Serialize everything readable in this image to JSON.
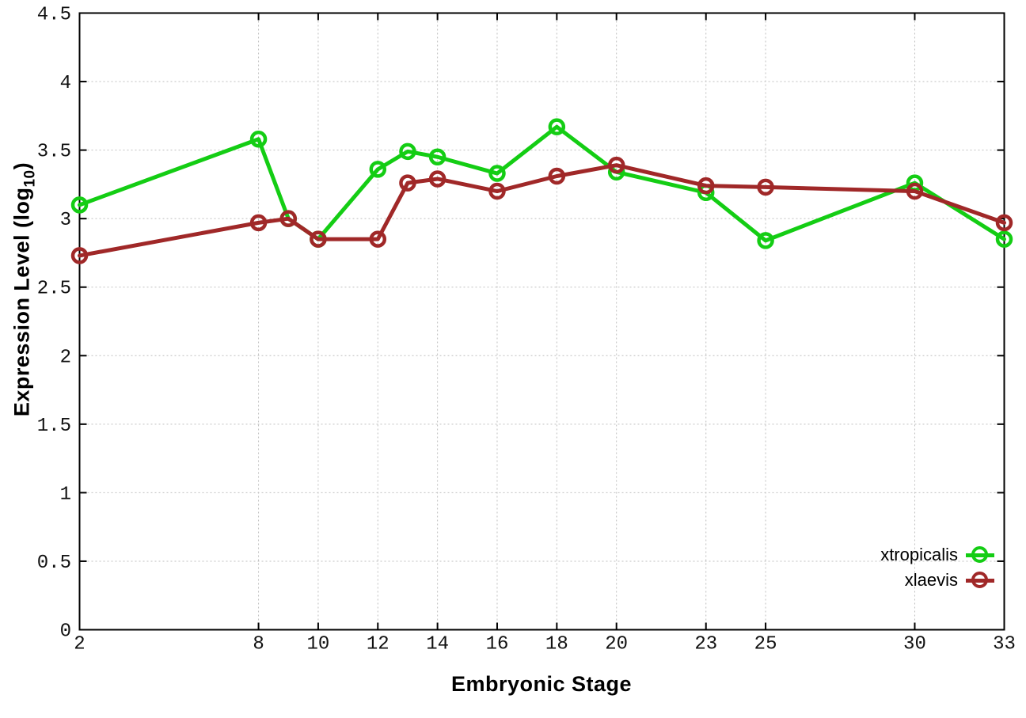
{
  "page": {
    "background": "#ffffff",
    "text_color": "#000000"
  },
  "chart_data": {
    "type": "line",
    "title": "",
    "xlabel": "Embryonic Stage",
    "ylabel": "Expression Level (log10)",
    "ylabel_parts": {
      "main": "Expression Level (log",
      "sub": "10",
      "close": ")"
    },
    "xlim": [
      2,
      33
    ],
    "ylim": [
      0,
      4.5
    ],
    "xticks": [
      2,
      8,
      10,
      12,
      14,
      16,
      18,
      20,
      23,
      25,
      30,
      33
    ],
    "xtick_labels": [
      "2",
      "8",
      "10",
      "12",
      "14",
      "16",
      "18",
      "20",
      "23",
      "25",
      "30",
      "33"
    ],
    "yticks": [
      0,
      0.5,
      1,
      1.5,
      2,
      2.5,
      3,
      3.5,
      4,
      4.5
    ],
    "ytick_labels": [
      "0",
      "0.5",
      "1",
      "1.5",
      "2",
      "2.5",
      "3",
      "3.5",
      "4",
      "4.5"
    ],
    "grid": true,
    "grid_color": "#bfbfbf",
    "border_color": "#000000",
    "legend_position": "inside-bottom-right",
    "marker": "open-circle",
    "series": [
      {
        "name": "xtropicalis",
        "color": "#14cd14",
        "x": [
          2,
          8,
          9,
          10,
          12,
          13,
          14,
          16,
          18,
          20,
          23,
          25,
          30,
          33
        ],
        "y": [
          3.1,
          3.58,
          3.0,
          2.85,
          3.36,
          3.49,
          3.45,
          3.33,
          3.67,
          3.34,
          3.19,
          2.84,
          3.26,
          2.85
        ]
      },
      {
        "name": "xlaevis",
        "color": "#a02828",
        "x": [
          2,
          8,
          9,
          10,
          12,
          13,
          14,
          16,
          18,
          20,
          23,
          25,
          30,
          33
        ],
        "y": [
          2.73,
          2.97,
          3.0,
          2.85,
          2.85,
          3.26,
          3.29,
          3.2,
          3.31,
          3.39,
          3.24,
          3.23,
          3.2,
          2.97
        ]
      }
    ]
  }
}
